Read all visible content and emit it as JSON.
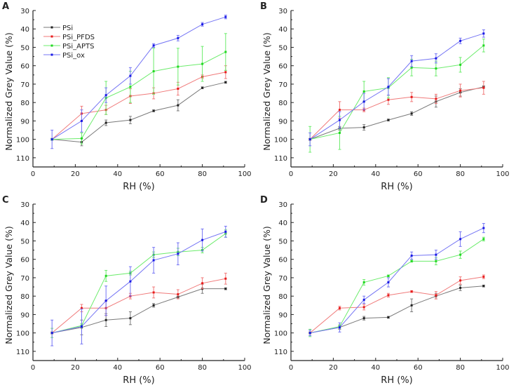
{
  "colors": {
    "PSi": "#222222",
    "PSi_PFDS": "#e81c1c",
    "PSi_APTS": "#22d822",
    "PSi_ox": "#1a1ae6",
    "PSi_line": "#7a7a7a",
    "PSi_PFDS_line": "#f07a7a",
    "PSi_APTS_line": "#6cec6c",
    "PSi_ox_line": "#7474f4"
  },
  "legend": [
    "PSi",
    "PSi_PFDS",
    "PSi_APTS",
    "PSi_ox"
  ],
  "chart_data": [
    {
      "panel": "A",
      "type": "line",
      "xlabel": "RH (%)",
      "ylabel": "Normalized Grey Value (%)",
      "xlim": [
        0,
        100
      ],
      "ylim": [
        115,
        30
      ],
      "y_reversed": true,
      "xticks": [
        "0",
        "20",
        "40",
        "60",
        "80",
        "100"
      ],
      "yticks": [
        "30",
        "40",
        "50",
        "60",
        "70",
        "80",
        "90",
        "100",
        "110"
      ],
      "legend_position": "top-left",
      "x": [
        9,
        23,
        34.5,
        46,
        57,
        68.5,
        80,
        91
      ],
      "series": [
        {
          "name": "PSi",
          "values": [
            100,
            101.5,
            91,
            89.5,
            84.5,
            81.5,
            72,
            69
          ],
          "errors": [
            0.5,
            2,
            1.5,
            2,
            0.5,
            3,
            0.5,
            0.5
          ]
        },
        {
          "name": "PSi_PFDS",
          "values": [
            100,
            86,
            84,
            76.5,
            75,
            72.5,
            66,
            63.5
          ],
          "errors": [
            0.5,
            4,
            2.5,
            4,
            3,
            3.5,
            1,
            3.5
          ]
        },
        {
          "name": "PSi_APTS",
          "values": [
            100,
            99.5,
            77.5,
            71.5,
            63,
            60.5,
            59,
            52.5
          ],
          "errors": [
            0.5,
            3,
            9,
            8.5,
            12.5,
            10,
            9.5,
            10
          ]
        },
        {
          "name": "PSi_ox",
          "values": [
            100,
            90,
            76,
            65.5,
            49,
            45,
            37.5,
            33.5
          ],
          "errors": [
            5,
            6,
            4,
            4.5,
            1,
            1.5,
            1,
            1
          ]
        }
      ]
    },
    {
      "panel": "B",
      "type": "line",
      "xlabel": "RH (%)",
      "ylabel": "Normalized Grey Value (%)",
      "xlim": [
        0,
        100
      ],
      "ylim": [
        115,
        30
      ],
      "y_reversed": true,
      "xticks": [
        "0",
        "20",
        "40",
        "60",
        "80",
        "100"
      ],
      "yticks": [
        "30",
        "40",
        "50",
        "60",
        "70",
        "80",
        "90",
        "100",
        "110"
      ],
      "x": [
        9,
        23,
        34.5,
        46,
        57,
        68.5,
        80,
        91
      ],
      "series": [
        {
          "name": "PSi",
          "values": [
            100,
            94,
            93.5,
            89.5,
            86,
            79.5,
            74.5,
            71.5
          ],
          "errors": [
            0.5,
            1,
            1.5,
            0.5,
            1,
            3,
            2,
            0.5
          ]
        },
        {
          "name": "PSi_PFDS",
          "values": [
            100,
            84,
            84,
            78.5,
            77,
            78,
            73.5,
            72
          ],
          "errors": [
            0.5,
            4.5,
            1,
            2.5,
            2.5,
            2.5,
            3.5,
            3.5
          ]
        },
        {
          "name": "PSi_APTS",
          "values": [
            100,
            96.5,
            74,
            72,
            61,
            61.5,
            59.5,
            49
          ],
          "errors": [
            7,
            9,
            5.5,
            5.5,
            4.5,
            4,
            4,
            3.5
          ]
        },
        {
          "name": "PSi_ox",
          "values": [
            100,
            89.5,
            79.5,
            71.5,
            57.5,
            56,
            46.5,
            42.5
          ],
          "errors": [
            3.5,
            4.5,
            4.5,
            4.5,
            3,
            2.5,
            1.5,
            2
          ]
        }
      ]
    },
    {
      "panel": "C",
      "type": "line",
      "xlabel": "RH (%)",
      "ylabel": "Normalized Grey Value (%)",
      "xlim": [
        0,
        100
      ],
      "ylim": [
        115,
        30
      ],
      "y_reversed": true,
      "xticks": [
        "0",
        "20",
        "40",
        "60",
        "80",
        "100"
      ],
      "yticks": [
        "30",
        "40",
        "50",
        "60",
        "70",
        "80",
        "90",
        "100",
        "110"
      ],
      "x": [
        9,
        23,
        34.5,
        46,
        57,
        68.5,
        80,
        91
      ],
      "series": [
        {
          "name": "PSi",
          "values": [
            100,
            97,
            93,
            92,
            85,
            80.5,
            76,
            76
          ],
          "errors": [
            0.5,
            4,
            3.5,
            3.5,
            1,
            0.5,
            2.5,
            0.5
          ]
        },
        {
          "name": "PSi_PFDS",
          "values": [
            100,
            86.5,
            86.5,
            80,
            78,
            79,
            73,
            70.5
          ],
          "errors": [
            0.5,
            2,
            4,
            1.5,
            3,
            2.5,
            3,
            3
          ]
        },
        {
          "name": "PSi_APTS",
          "values": [
            100,
            96,
            69,
            67.5,
            57.5,
            56,
            55,
            46
          ],
          "errors": [
            2.5,
            1,
            3,
            1,
            1.5,
            2,
            1.5,
            2
          ]
        },
        {
          "name": "PSi_ox",
          "values": [
            100,
            96.5,
            82.5,
            72,
            60.5,
            57,
            49.5,
            45
          ],
          "errors": [
            7,
            9.5,
            8,
            8,
            7,
            6,
            6,
            3
          ]
        }
      ]
    },
    {
      "panel": "D",
      "type": "line",
      "xlabel": "RH (%)",
      "ylabel": "Normalized Grey Value (%)",
      "xlim": [
        0,
        100
      ],
      "ylim": [
        115,
        30
      ],
      "y_reversed": true,
      "xticks": [
        "0",
        "20",
        "40",
        "60",
        "80",
        "100"
      ],
      "yticks": [
        "30",
        "40",
        "50",
        "60",
        "70",
        "80",
        "90",
        "100",
        "110"
      ],
      "x": [
        9,
        23,
        34.5,
        46,
        57,
        68.5,
        80,
        91
      ],
      "series": [
        {
          "name": "PSi",
          "values": [
            100,
            97,
            92,
            91.5,
            85,
            80,
            75.5,
            74.5
          ],
          "errors": [
            0.5,
            1,
            1,
            0.5,
            3.5,
            1.5,
            1.5,
            0.5
          ]
        },
        {
          "name": "PSi_PFDS",
          "values": [
            100,
            86.5,
            86,
            79.5,
            77.5,
            79.5,
            71.5,
            69.5
          ],
          "errors": [
            0.5,
            1,
            1.5,
            1,
            0.5,
            2,
            2,
            1
          ]
        },
        {
          "name": "PSi_APTS",
          "values": [
            100,
            96.5,
            72.5,
            69,
            61,
            61,
            57.5,
            49
          ],
          "errors": [
            2,
            1,
            1.5,
            0.5,
            0.5,
            2,
            2,
            1
          ]
        },
        {
          "name": "PSi_ox",
          "values": [
            100,
            97,
            82,
            72.5,
            58,
            57.5,
            49,
            43
          ],
          "errors": [
            1.5,
            2.5,
            2,
            2.5,
            2,
            2.5,
            4,
            2.5
          ]
        }
      ]
    }
  ]
}
